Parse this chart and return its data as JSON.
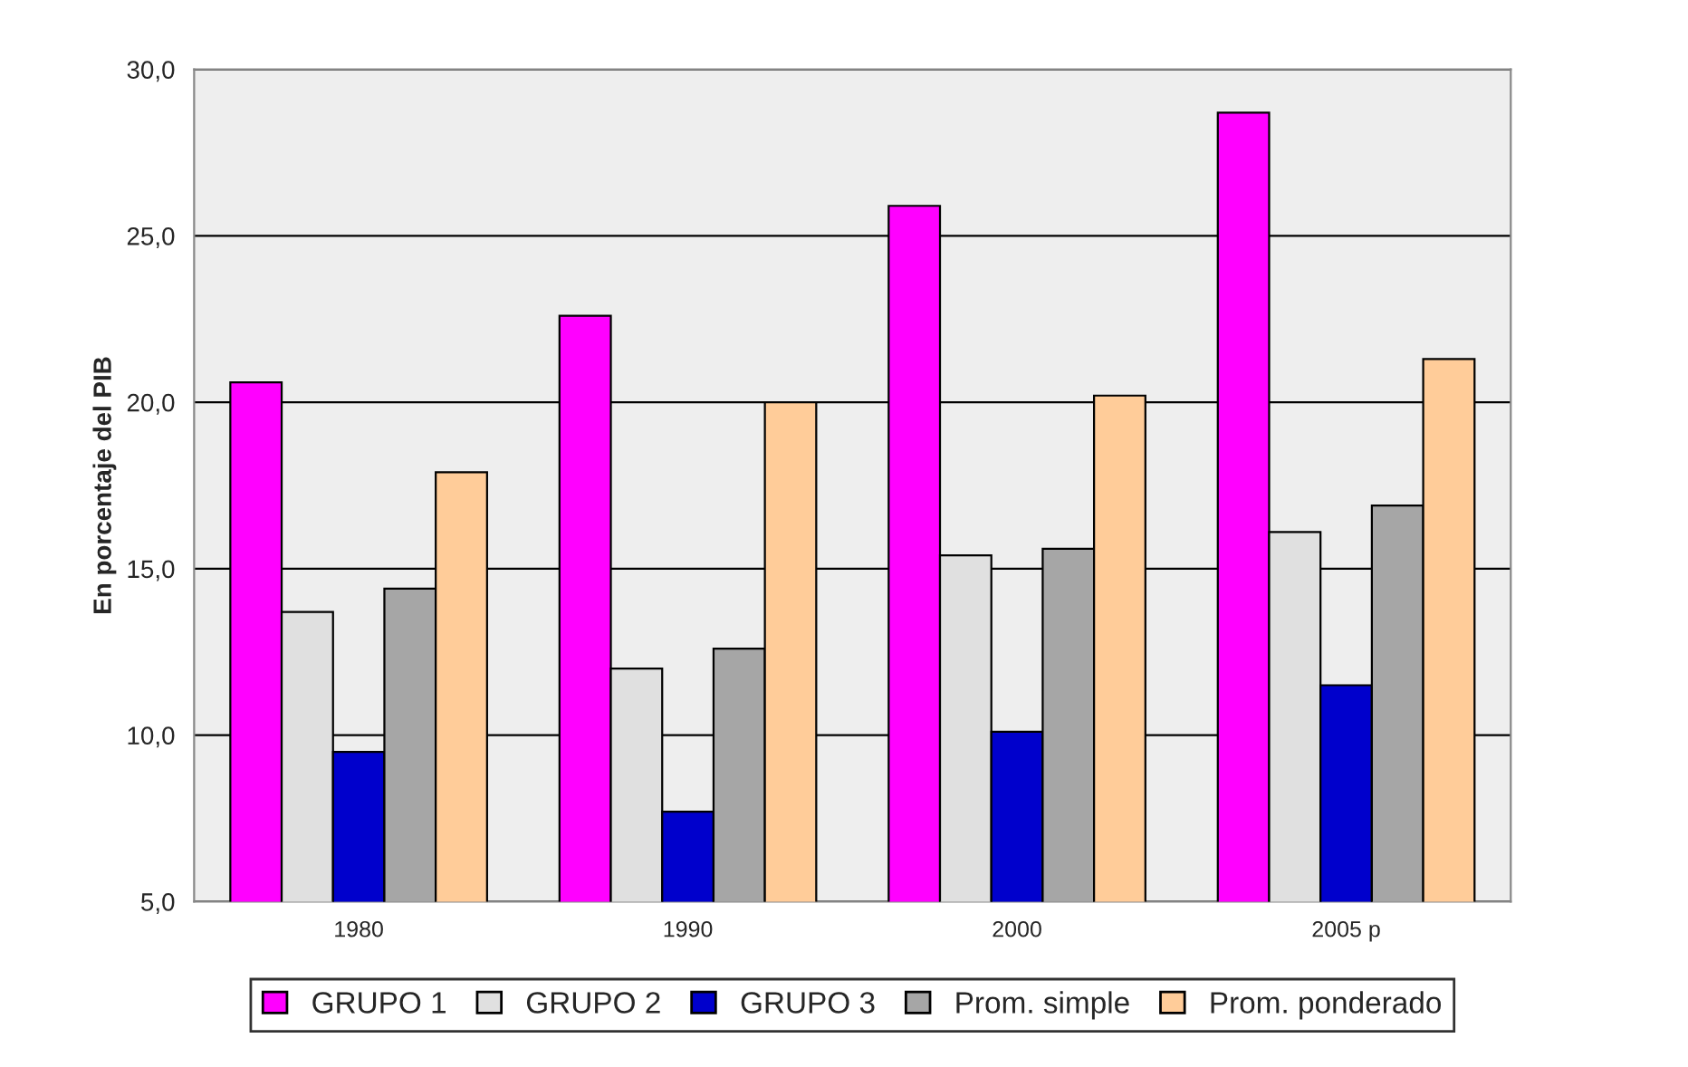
{
  "chart_data": {
    "type": "bar",
    "ylabel": "En porcentaje del PIB",
    "categories": [
      "1980",
      "1990",
      "2000",
      "2005 p"
    ],
    "series": [
      {
        "name": "GRUPO 1",
        "color": "#ff00ff",
        "values": [
          20.6,
          22.6,
          25.9,
          28.7
        ]
      },
      {
        "name": "GRUPO 2",
        "color": "#e0e0e0",
        "values": [
          13.7,
          12.0,
          15.4,
          16.1
        ]
      },
      {
        "name": "GRUPO 3",
        "color": "#0000cc",
        "values": [
          9.5,
          7.7,
          10.1,
          11.5
        ]
      },
      {
        "name": "Prom. simple",
        "color": "#a6a6a6",
        "values": [
          14.4,
          12.6,
          15.6,
          16.9
        ]
      },
      {
        "name": "Prom. ponderado",
        "color": "#ffcc99",
        "values": [
          17.9,
          20.0,
          20.2,
          21.3
        ]
      }
    ],
    "ylim": [
      5,
      30
    ],
    "yticks": [
      {
        "value": 5,
        "label": "5,0"
      },
      {
        "value": 10,
        "label": "10,0"
      },
      {
        "value": 15,
        "label": "15,0"
      },
      {
        "value": 20,
        "label": "20,0"
      },
      {
        "value": 25,
        "label": "25,0"
      },
      {
        "value": 30,
        "label": "30,0"
      }
    ],
    "grid": "y",
    "legend": "bottom"
  }
}
